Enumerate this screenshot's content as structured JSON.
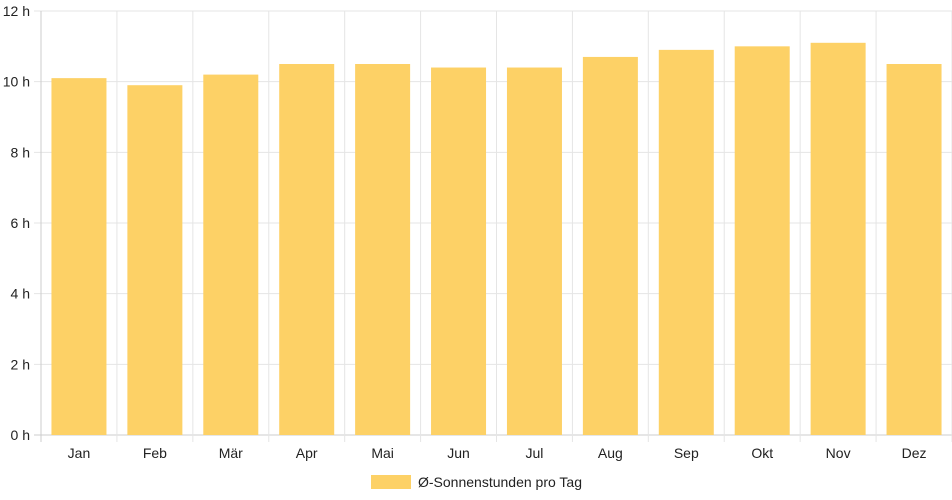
{
  "chart_data": {
    "type": "bar",
    "categories": [
      "Jan",
      "Feb",
      "Mär",
      "Apr",
      "Mai",
      "Jun",
      "Jul",
      "Aug",
      "Sep",
      "Okt",
      "Nov",
      "Dez"
    ],
    "series": [
      {
        "name": "Ø-Sonnenstunden pro Tag",
        "values": [
          10.1,
          9.9,
          10.2,
          10.5,
          10.5,
          10.4,
          10.4,
          10.7,
          10.9,
          11.0,
          11.1,
          10.5
        ]
      }
    ],
    "y_ticks": [
      "0 h",
      "2 h",
      "4 h",
      "6 h",
      "8 h",
      "10 h",
      "12 h"
    ],
    "ylim": [
      0,
      12
    ],
    "grid": true,
    "legend_position": "bottom",
    "colors": {
      "bar": "#fdd166",
      "grid": "#e5e5e5",
      "axis": "#cccccc",
      "text": "#222222"
    }
  }
}
